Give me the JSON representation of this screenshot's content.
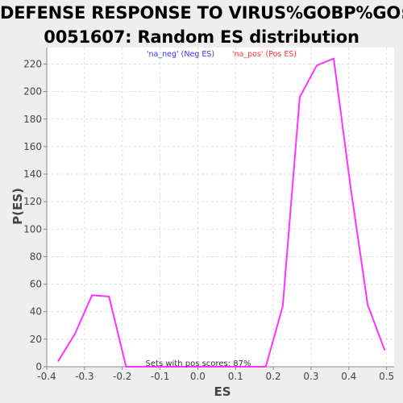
{
  "title": {
    "line1": "DEFENSE RESPONSE TO VIRUS%GOBP%GO:",
    "line2": "0051607: Random ES distribution"
  },
  "colors": {
    "plot_bg": "#ffffff",
    "page_bg": "#eeeeee",
    "series_line": "#ff33ff",
    "neg_legend": "#3333ff",
    "pos_legend": "#ff3333",
    "grid": "#dddddd"
  },
  "chart_data": {
    "type": "line",
    "xlabel": "ES",
    "ylabel": "P(ES)",
    "xlim": [
      -0.4,
      0.52
    ],
    "ylim": [
      0,
      232
    ],
    "xticks": [
      -0.4,
      -0.3,
      -0.2,
      -0.1,
      0.0,
      0.1,
      0.2,
      0.3,
      0.4,
      0.5
    ],
    "xtick_labels": [
      "-0.4",
      "-0.3",
      "-0.2",
      "-0.1",
      "0.0",
      "0.1",
      "0.2",
      "0.3",
      "0.4",
      "0.5"
    ],
    "yticks": [
      0,
      20,
      40,
      60,
      80,
      100,
      120,
      140,
      160,
      180,
      200,
      220
    ],
    "ytick_labels": [
      "0",
      "20",
      "40",
      "60",
      "80",
      "100",
      "120",
      "140",
      "160",
      "180",
      "200",
      "220"
    ],
    "grid": true,
    "legend": [
      {
        "label": "'na_neg' (Neg ES)",
        "color": "#3333ff"
      },
      {
        "label": "'na_pos' (Pos ES)",
        "color": "#ff3333"
      }
    ],
    "annotation": "Sets with pos scores: 87%",
    "series": [
      {
        "x": [
          -0.37,
          -0.325,
          -0.28,
          -0.235,
          -0.19,
          -0.145,
          -0.1,
          -0.055,
          -0.01,
          0.035,
          0.08,
          0.125,
          0.17,
          0.18,
          0.225,
          0.27,
          0.315,
          0.36,
          0.405,
          0.45,
          0.495
        ],
        "y": [
          4,
          24,
          52,
          51,
          0,
          0,
          0,
          0,
          0,
          0,
          0,
          0,
          0,
          0,
          44,
          196,
          219,
          224,
          130,
          45,
          12
        ]
      }
    ]
  }
}
